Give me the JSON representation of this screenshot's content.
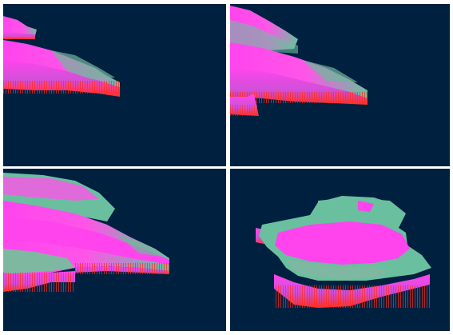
{
  "colors": {
    "background": "#002040",
    "gap": "#ffffff",
    "top": "#ff44ee",
    "mid": "#3fbf8f",
    "side": "#b84fc8",
    "base": "#ff3020"
  },
  "panels": [
    {
      "view": "close-up-edge"
    },
    {
      "view": "edge-two-slabs"
    },
    {
      "view": "wide-slab"
    },
    {
      "view": "full-island"
    }
  ]
}
